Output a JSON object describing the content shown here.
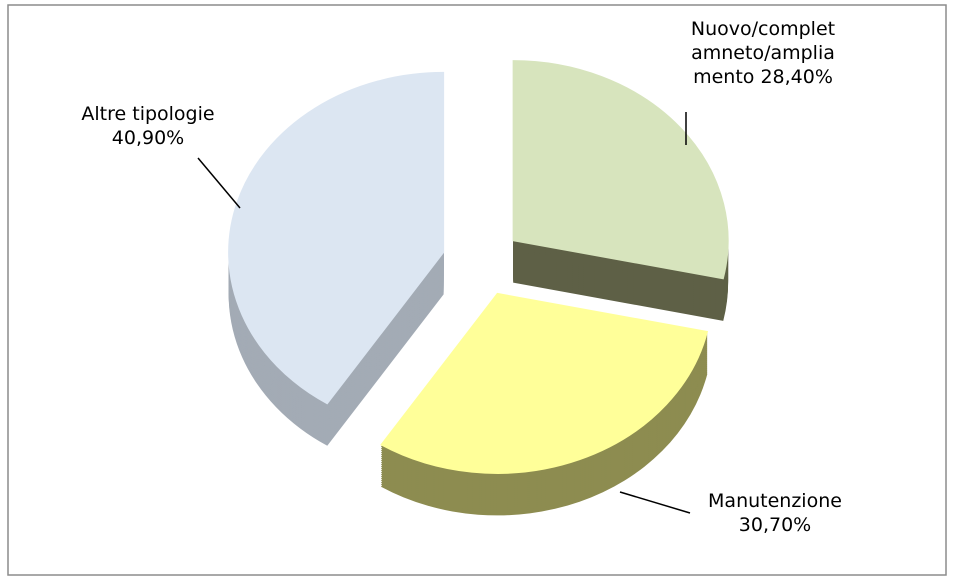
{
  "chart_data": {
    "type": "pie",
    "categories": [
      "Nuovo/completamneto/ampliamento",
      "Manutenzione",
      "Altre tipologie"
    ],
    "values": [
      28.4,
      30.7,
      40.9
    ],
    "value_labels": [
      "28,40%",
      "30,70%",
      "40,90%"
    ],
    "colors": [
      "#d7e4bd",
      "#ffff99",
      "#dce6f2"
    ],
    "side_colors": [
      "#5e6046",
      "#8d8c50",
      "#a3abb5"
    ]
  }
}
